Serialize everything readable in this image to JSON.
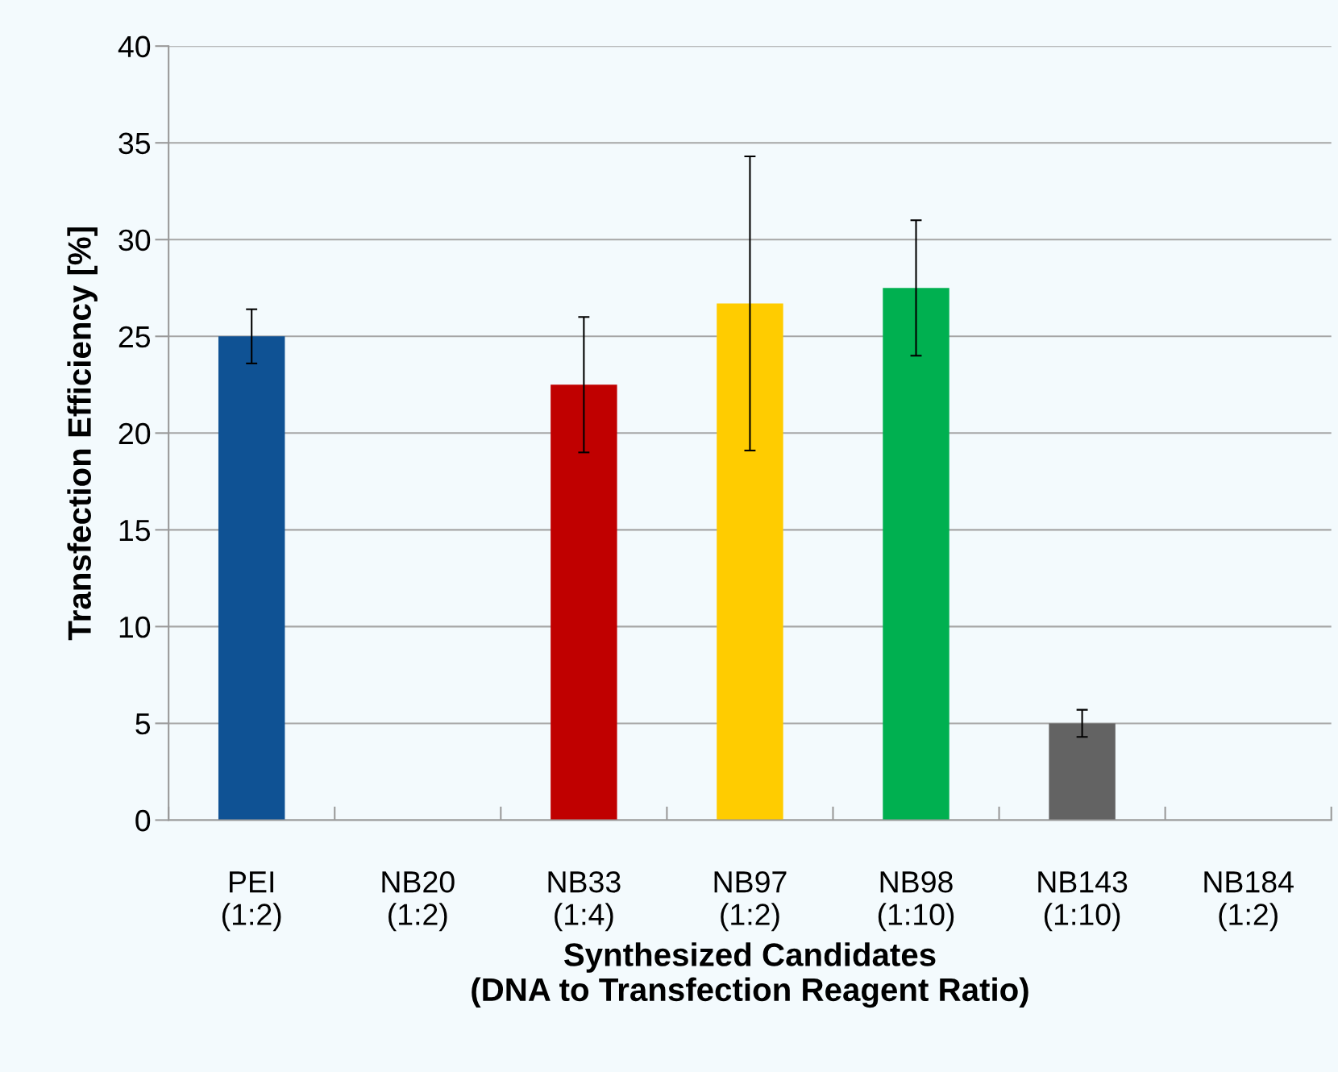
{
  "chart_data": {
    "type": "bar",
    "xlabel": "Synthesized Candidates\n(DNA to Transfection Reagent Ratio)",
    "ylabel": "Transfection Efficiency [%]",
    "categories": [
      "PEI\n(1:2)",
      "NB20\n(1:2)",
      "NB33\n(1:4)",
      "NB97\n(1:2)",
      "NB98\n(1:10)",
      "NB143\n(1:10)",
      "NB184\n(1:2)"
    ],
    "values": [
      25.0,
      0,
      22.5,
      26.7,
      27.5,
      5.0,
      0
    ],
    "errors": [
      1.4,
      null,
      3.5,
      7.6,
      3.5,
      0.7,
      null
    ],
    "colors": [
      "#0f5294",
      "#808080",
      "#c00000",
      "#ffcc00",
      "#00b050",
      "#636363",
      "#808080"
    ],
    "ylim": [
      0,
      40
    ],
    "yticks": [
      0,
      5,
      10,
      15,
      20,
      25,
      30,
      35,
      40
    ],
    "grid": "y",
    "legend": false
  }
}
